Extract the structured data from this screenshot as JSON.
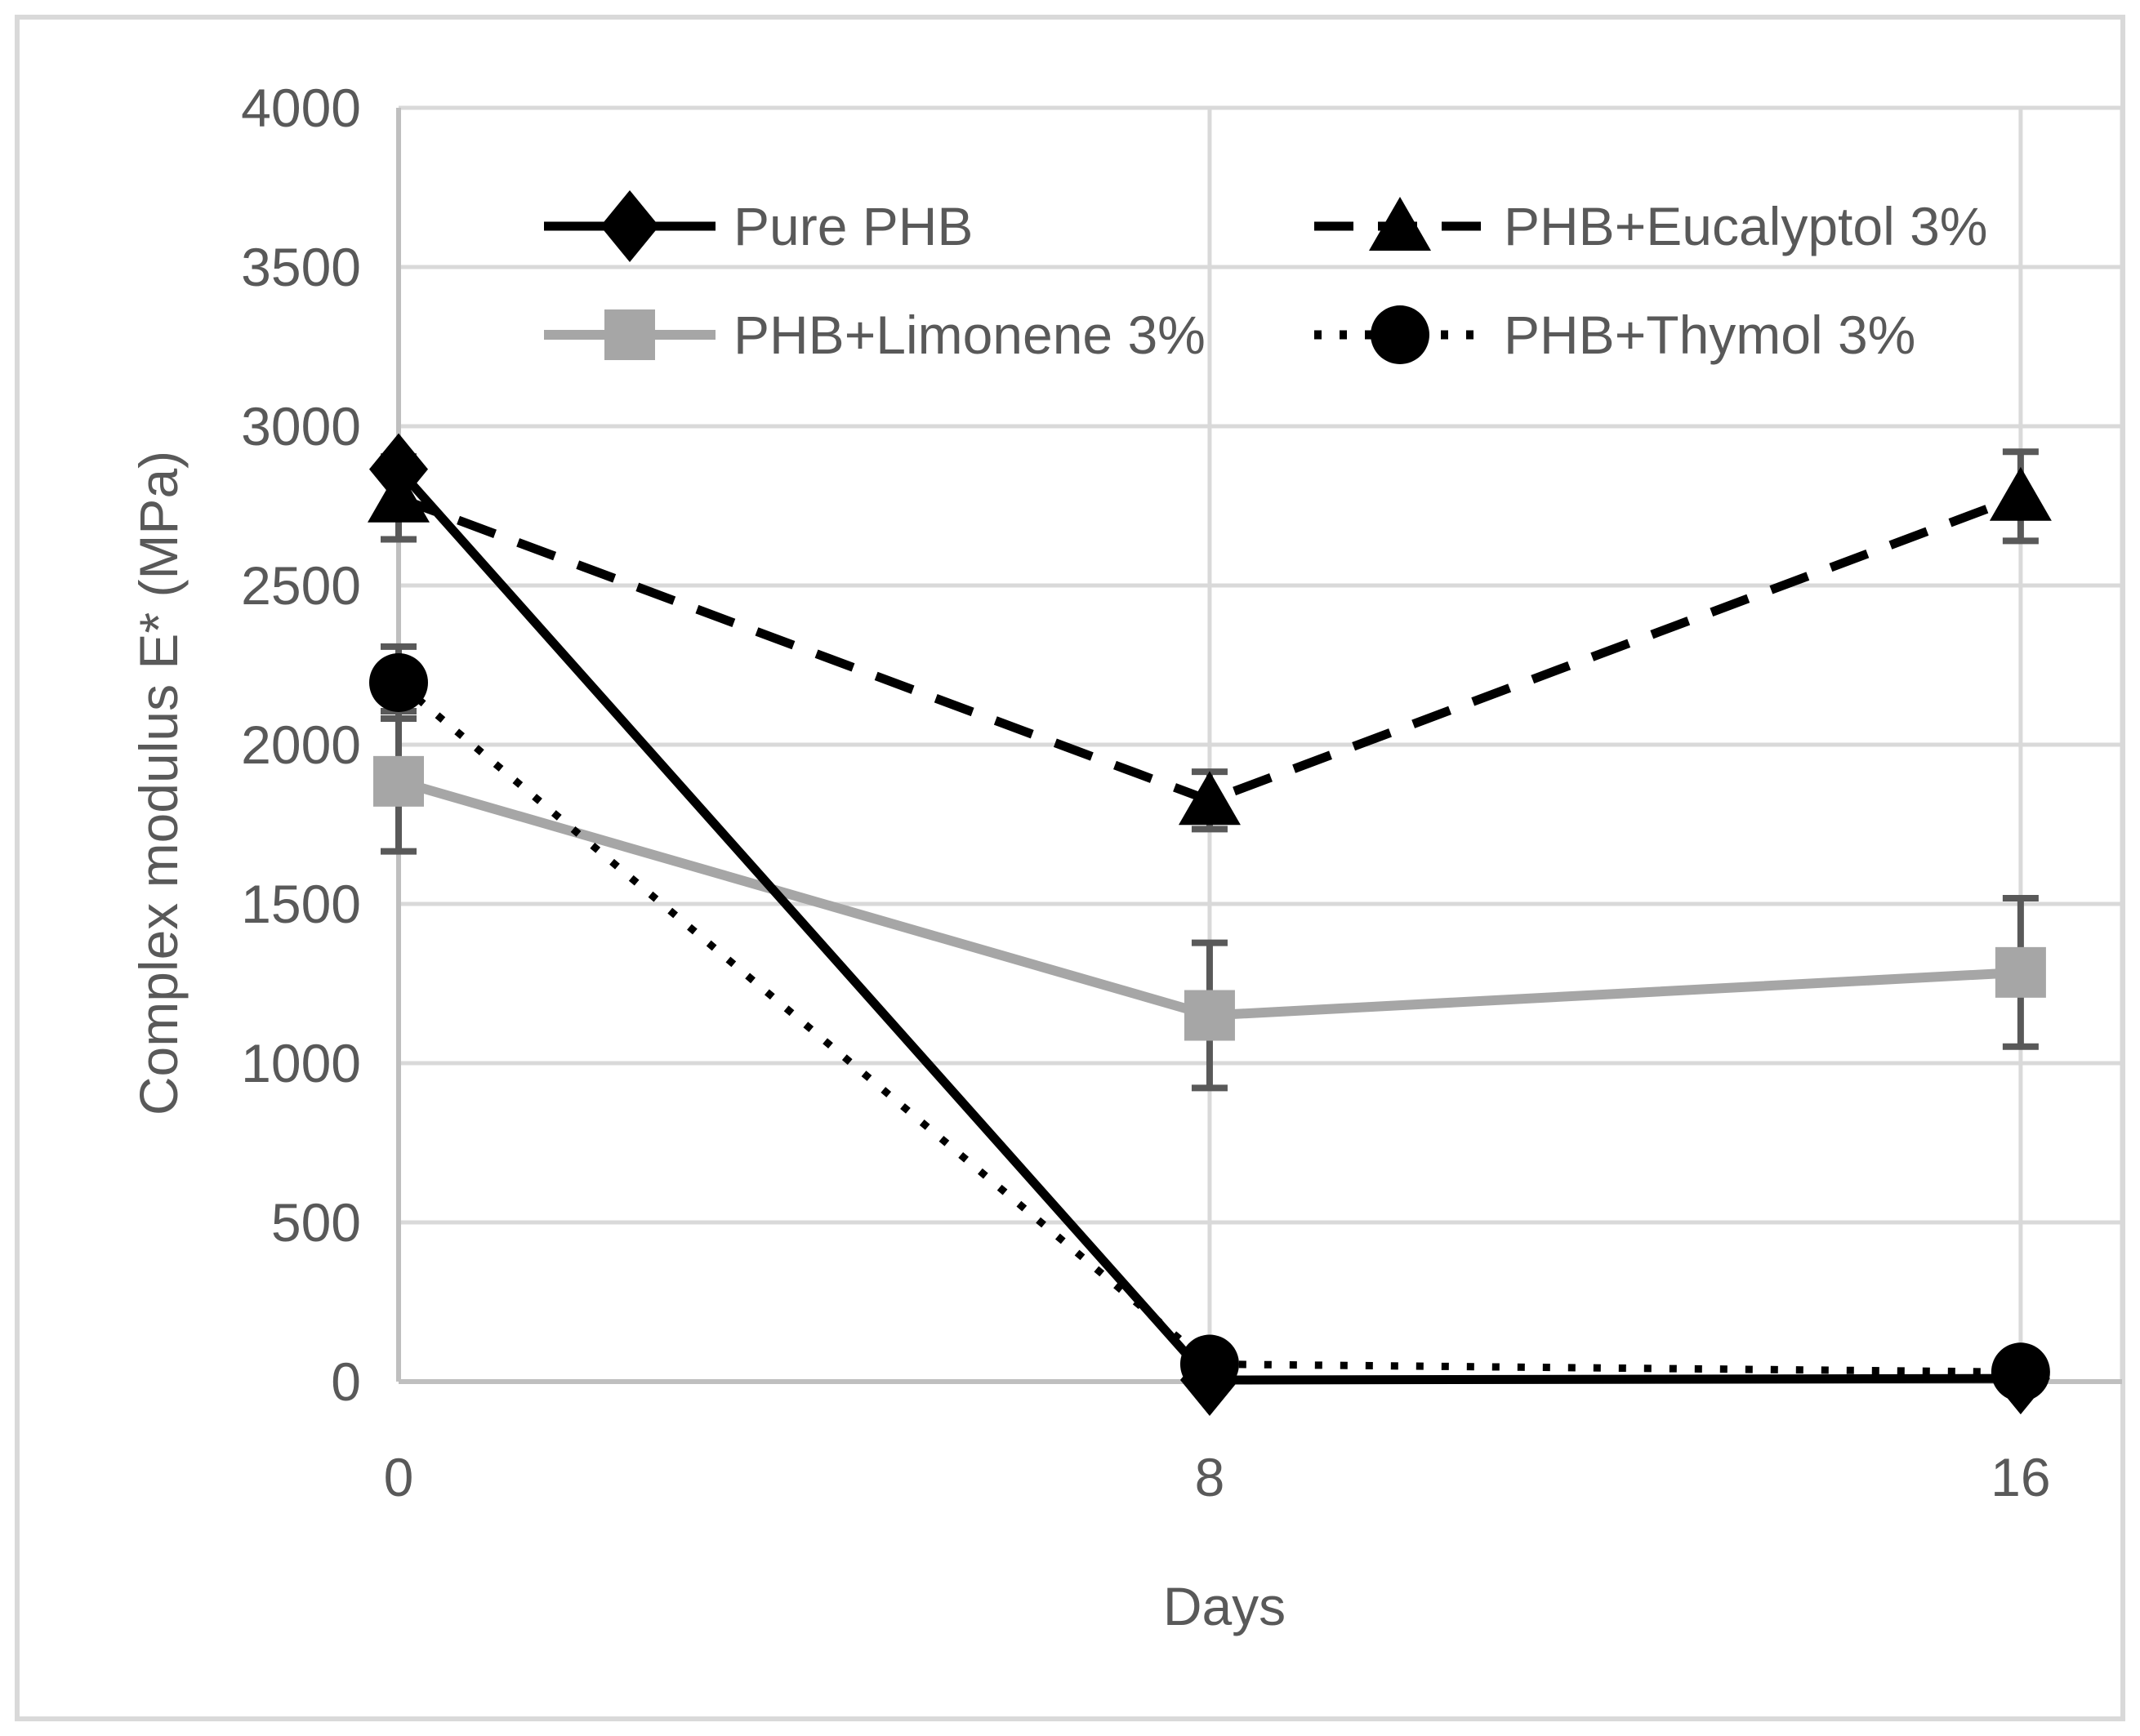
{
  "figure": {
    "background": "#ffffff",
    "border_color": "#d9d9d9"
  },
  "chart_data": {
    "type": "line",
    "title": "",
    "xlabel": "Days",
    "ylabel": "Complex modulus E* (MPa)",
    "x": [
      0,
      8,
      16
    ],
    "x_tick_labels": [
      "0",
      "8",
      "16"
    ],
    "xlim": [
      0,
      17
    ],
    "ylim": [
      0,
      4000
    ],
    "y_ticks": [
      0,
      500,
      1000,
      1500,
      2000,
      2500,
      3000,
      3500,
      4000
    ],
    "grid": "horizontal gridlines every 500; vertical gridlines at x=8 and x=16; plot border on top and right",
    "legend_position": "inside top, two columns by two rows",
    "series": [
      {
        "name": "PHB+Eucalyptol 3%",
        "color": "#000000",
        "line_style": "dashed",
        "marker": "triangle",
        "values": [
          2775,
          1825,
          2780
        ],
        "error": [
          130,
          90,
          140
        ]
      },
      {
        "name": "PHB+Limonene 3%",
        "color": "#a6a6a6",
        "line_style": "solid",
        "marker": "square",
        "values": [
          1885,
          1150,
          1285
        ],
        "error": [
          220,
          228,
          233
        ]
      },
      {
        "name": "Pure PHB",
        "color": "#000000",
        "line_style": "solid",
        "marker": "diamond",
        "values": [
          2865,
          5,
          10
        ],
        "error": [
          0,
          0,
          0
        ]
      },
      {
        "name": "PHB+Thymol 3%",
        "color": "#000000",
        "line_style": "dotted",
        "marker": "circle",
        "values": [
          2195,
          55,
          30
        ],
        "error": [
          113,
          0,
          0
        ]
      }
    ],
    "legend_order": [
      "Pure PHB",
      "PHB+Eucalyptol 3%",
      "PHB+Limonene 3%",
      "PHB+Thymol 3%"
    ],
    "style": {
      "error_bar_color": "#595959",
      "gridline_color": "#d9d9d9",
      "axis_line_color": "#bfbfbf",
      "text_color": "#595959"
    }
  }
}
